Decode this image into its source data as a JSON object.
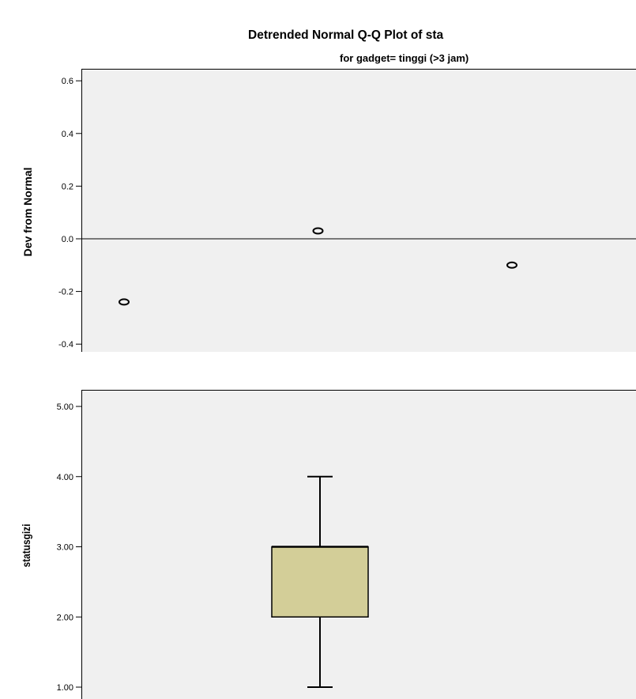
{
  "chart_data": [
    {
      "type": "scatter",
      "title": "Detrended Normal Q-Q Plot of sta",
      "subtitle": "for gadget= tinggi (>3 jam)",
      "ylabel": "Dev from Normal",
      "xlabel": "",
      "ylim": [
        -0.42,
        0.6
      ],
      "yticks": [
        {
          "value": 0.6,
          "label": "0.6"
        },
        {
          "value": 0.4,
          "label": "0.4"
        },
        {
          "value": 0.2,
          "label": "0.2"
        },
        {
          "value": 0.0,
          "label": "0.0"
        },
        {
          "value": -0.2,
          "label": "-0.2"
        },
        {
          "value": -0.4,
          "label": "-0.4"
        }
      ],
      "reference_line": 0.0,
      "grid": false,
      "background": "#f0f0f0",
      "points": [
        {
          "x": 2.0,
          "y": -0.24
        },
        {
          "x": 3.0,
          "y": 0.03
        },
        {
          "x": 4.0,
          "y": -0.1
        }
      ]
    },
    {
      "type": "box",
      "title": "",
      "xlabel": "",
      "ylabel": "statusgizi",
      "ylim": [
        1.0,
        5.0
      ],
      "yticks": [
        {
          "value": 5.0,
          "label": "5.00"
        },
        {
          "value": 4.0,
          "label": "4.00"
        },
        {
          "value": 3.0,
          "label": "3.00"
        },
        {
          "value": 2.0,
          "label": "2.00"
        },
        {
          "value": 1.0,
          "label": "1.00"
        }
      ],
      "grid": false,
      "background": "#f0f0f0",
      "box_color": "#d3ce98",
      "box": {
        "min": 1.0,
        "q1": 2.0,
        "median": 3.0,
        "q3": 3.0,
        "max": 4.0
      }
    }
  ]
}
